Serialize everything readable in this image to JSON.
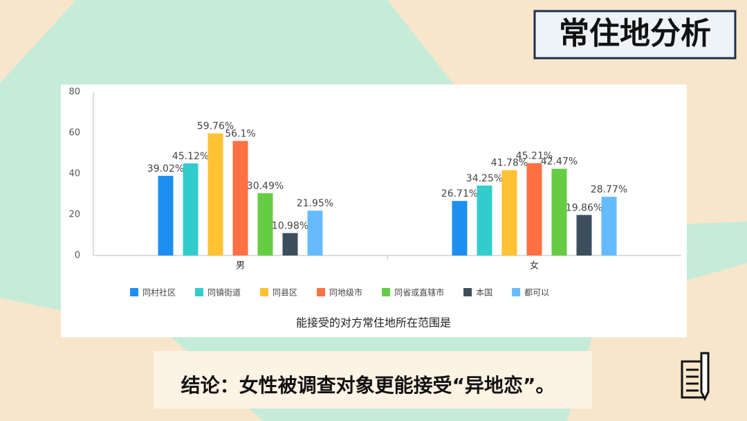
{
  "slide_title": "常住地分析",
  "conclusion": "结论：女性被调查对象更能接受“异地恋”。",
  "chart_data": {
    "type": "bar",
    "caption": "能接受的对方常住地所在范围是",
    "categories": [
      "男",
      "女"
    ],
    "series": [
      {
        "name": "同村社区",
        "color": "#1e8ff0",
        "values": [
          39.02,
          26.71
        ],
        "value_labels": [
          "39.02%",
          "26.71%"
        ]
      },
      {
        "name": "同镇街道",
        "color": "#33cccc",
        "values": [
          45.12,
          34.25
        ],
        "value_labels": [
          "45.12%",
          "34.25%"
        ]
      },
      {
        "name": "同县区",
        "color": "#ffc233",
        "values": [
          59.76,
          41.78
        ],
        "value_labels": [
          "59.76%",
          "41.78%"
        ]
      },
      {
        "name": "同地级市",
        "color": "#ff7043",
        "values": [
          56.1,
          45.21
        ],
        "value_labels": [
          "56.1%",
          "45.21%"
        ]
      },
      {
        "name": "同省或直辖市",
        "color": "#66cc44",
        "values": [
          30.49,
          42.47
        ],
        "value_labels": [
          "30.49%",
          "42.47%"
        ]
      },
      {
        "name": "本国",
        "color": "#3d4f5c",
        "values": [
          10.98,
          19.86
        ],
        "value_labels": [
          "10.98%",
          "19.86%"
        ]
      },
      {
        "name": "都可以",
        "color": "#66bbff",
        "values": [
          21.95,
          28.77
        ],
        "value_labels": [
          "21.95%",
          "28.77%"
        ]
      }
    ],
    "ylim": [
      0,
      80
    ],
    "yticks": [
      0,
      20,
      40,
      60,
      80
    ],
    "grid": false,
    "legend": "bottom"
  }
}
